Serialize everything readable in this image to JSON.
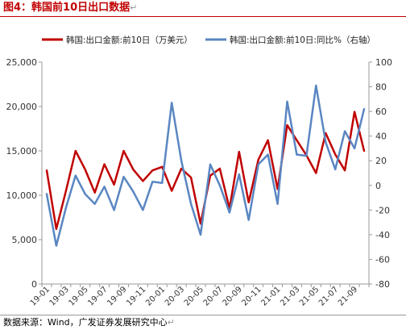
{
  "figure_title": "图4：韩国前10日出口数据",
  "source_text": "数据来源：Wind，广发证券发展研究中心",
  "return_mark": "↵",
  "chart_data": {
    "type": "line",
    "title": "",
    "categories": [
      "19-01",
      "19-02",
      "19-03",
      "19-04",
      "19-05",
      "19-06",
      "19-07",
      "19-08",
      "19-09",
      "19-10",
      "19-11",
      "19-12",
      "20-01",
      "20-02",
      "20-03",
      "20-04",
      "20-05",
      "20-06",
      "20-07",
      "20-08",
      "20-09",
      "20-10",
      "20-11",
      "20-12",
      "21-01",
      "21-02",
      "21-03",
      "21-04",
      "21-05",
      "21-06",
      "21-07",
      "21-08",
      "21-09",
      "21-10"
    ],
    "x_tick_labels": [
      "19-01",
      "19-03",
      "19-05",
      "19-07",
      "19-09",
      "19-11",
      "20-01",
      "20-03",
      "20-05",
      "20-07",
      "20-09",
      "20-11",
      "21-01",
      "21-03",
      "21-05",
      "21-07",
      "21-09"
    ],
    "left_axis": {
      "ylim": [
        0,
        25000
      ],
      "ticks": [
        "0",
        "5,000",
        "10,000",
        "15,000",
        "20,000",
        "25,000"
      ]
    },
    "right_axis": {
      "ylim": [
        -80,
        100
      ],
      "ticks": [
        "-80",
        "-60",
        "-40",
        "-20",
        "0",
        "20",
        "40",
        "60",
        "80",
        "100"
      ]
    },
    "series": [
      {
        "name": "韩国:出口金额:前10日（万美元）",
        "axis": "left",
        "color": "#c00000",
        "values": [
          12800,
          6200,
          10500,
          15000,
          12900,
          10300,
          13500,
          11200,
          15000,
          12900,
          11600,
          12800,
          13200,
          10500,
          13000,
          12000,
          6800,
          12200,
          13000,
          8500,
          14900,
          9200,
          14000,
          16200,
          10700,
          17900,
          16200,
          14500,
          12500,
          17000,
          14600,
          12800,
          19400,
          15000
        ]
      },
      {
        "name": "韩国:出口金额:前10日:同比%（右轴）",
        "axis": "right",
        "color": "#5a86c2",
        "values": [
          -7,
          -49,
          -18,
          8,
          -7,
          -15,
          -1,
          -20,
          7,
          -5,
          -20,
          3,
          2,
          67,
          20,
          -15,
          -40,
          17,
          0,
          -22,
          9,
          -28,
          17,
          25,
          -15,
          68,
          25,
          24,
          81,
          35,
          13,
          44,
          30,
          62
        ]
      }
    ],
    "legend_position": "top",
    "grid": false
  }
}
